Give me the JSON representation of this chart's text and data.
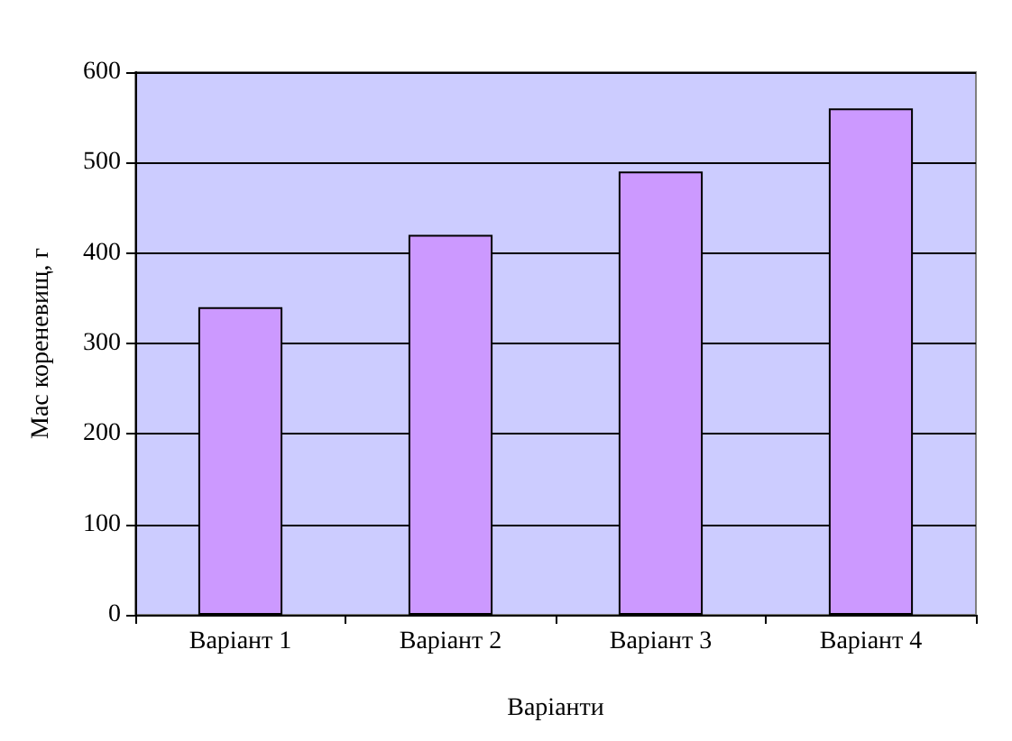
{
  "chart_data": {
    "type": "bar",
    "xlabel": "Варіанти",
    "ylabel": "Мас кореневищ, г",
    "categories": [
      "Варіант 1",
      "Варіант 2",
      "Варіант 3",
      "Варіант 4"
    ],
    "values": [
      340,
      420,
      490,
      560
    ],
    "color": "#cc99ff",
    "ylim": [
      0,
      600
    ],
    "yticks": [
      0,
      100,
      200,
      300,
      400,
      500,
      600
    ],
    "grid": "y"
  }
}
